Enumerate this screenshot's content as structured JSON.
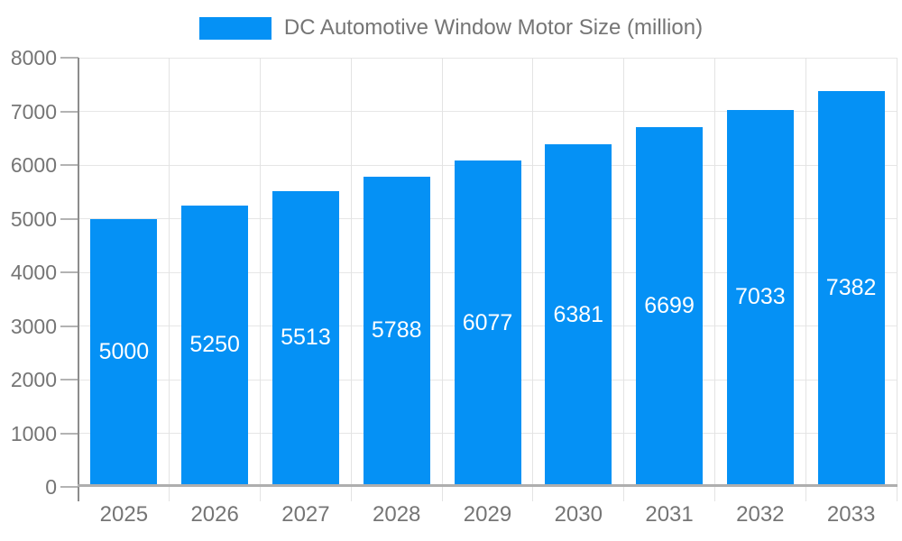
{
  "legend": {
    "label": "DC Automotive Window Motor Size (million)"
  },
  "chart_data": {
    "type": "bar",
    "title": "DC Automotive Window Motor Size (million)",
    "categories": [
      "2025",
      "2026",
      "2027",
      "2028",
      "2029",
      "2030",
      "2031",
      "2032",
      "2033"
    ],
    "values": [
      5000,
      5250,
      5513,
      5788,
      6077,
      6381,
      6699,
      7033,
      7382
    ],
    "series": [
      {
        "name": "DC Automotive Window Motor Size (million)",
        "values": [
          5000,
          5250,
          5513,
          5788,
          6077,
          6381,
          6699,
          7033,
          7382
        ]
      }
    ],
    "xlabel": "",
    "ylabel": "",
    "ylim": [
      0,
      8000
    ],
    "yticks": [
      0,
      1000,
      2000,
      3000,
      4000,
      5000,
      6000,
      7000,
      8000
    ],
    "grid": true,
    "legend_position": "top",
    "value_labels": "inside-center",
    "colors": {
      "bar": "#0591F5",
      "grid": "#e6e6e6",
      "vgrid": "#e3e3e3",
      "tick": "#b3b3b3",
      "axis": "#aeaeae",
      "axis_dark": "#8c8c8c",
      "text": "#757575",
      "value_text": "#ffffff",
      "background": "#ffffff"
    }
  }
}
